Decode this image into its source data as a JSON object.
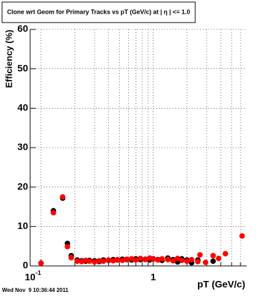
{
  "chart_data": {
    "type": "scatter",
    "title": "Clone wrt Geom for Primary Tracks vs pT (GeV/c) at | η | <= 1.0",
    "x_label": "pT (GeV/c)",
    "y_label": "Efficiency (%)",
    "timestamp": "Wed Nov  9 10:36:44 2011",
    "log_x": true,
    "grid": true,
    "xlim": [
      0.08,
      6.8
    ],
    "ylim": [
      0,
      60
    ],
    "xticks": [
      {
        "value": 0.1,
        "label": "10",
        "exponent": "-1"
      },
      {
        "value": 1,
        "label": "1"
      }
    ],
    "x_minor_ticks": [
      0.2,
      0.3,
      0.4,
      0.5,
      0.6,
      0.7,
      0.8,
      0.9,
      2,
      3,
      4,
      5,
      6
    ],
    "yticks": [
      0,
      10,
      20,
      30,
      40,
      50,
      60
    ],
    "series": [
      {
        "name": "Black",
        "color": "#000000",
        "x": [
          0.1,
          0.129,
          0.156,
          0.172,
          0.186,
          0.21,
          0.23,
          0.25,
          0.27,
          0.3,
          0.33,
          0.36,
          0.4,
          0.44,
          0.48,
          0.53,
          0.58,
          0.64,
          0.7,
          0.77,
          0.85,
          0.93,
          1.0,
          1.1,
          1.2,
          1.35,
          1.5,
          1.65,
          1.8,
          2.0,
          2.2,
          2.5,
          3.42
        ],
        "values": [
          0.7,
          14.0,
          17.2,
          5.7,
          2.6,
          1.5,
          1.3,
          1.2,
          1.4,
          1.3,
          1.1,
          1.5,
          1.4,
          1.6,
          1.5,
          1.7,
          1.6,
          1.5,
          1.8,
          1.6,
          1.7,
          1.5,
          1.8,
          1.6,
          1.4,
          2.0,
          1.6,
          1.0,
          1.8,
          1.5,
          0.8,
          1.5,
          1.2
        ]
      },
      {
        "name": "Red",
        "color": "#ff0000",
        "x": [
          0.1,
          0.129,
          0.156,
          0.172,
          0.186,
          0.21,
          0.23,
          0.25,
          0.27,
          0.3,
          0.33,
          0.36,
          0.4,
          0.44,
          0.48,
          0.53,
          0.58,
          0.64,
          0.7,
          0.77,
          0.85,
          0.93,
          1.0,
          1.1,
          1.2,
          1.35,
          1.5,
          1.65,
          1.8,
          2.0,
          2.2,
          2.5,
          2.61,
          2.93,
          3.42,
          3.83,
          4.4,
          6.2
        ],
        "values": [
          0.7,
          13.5,
          17.5,
          4.9,
          2.1,
          1.2,
          1.1,
          1.4,
          1.2,
          1.0,
          1.3,
          1.2,
          1.5,
          1.3,
          1.6,
          1.4,
          1.7,
          1.8,
          1.5,
          1.9,
          1.6,
          2.0,
          1.7,
          1.5,
          1.8,
          1.6,
          1.3,
          1.9,
          1.4,
          1.2,
          1.6,
          1.1,
          2.8,
          0.9,
          2.6,
          1.9,
          3.1,
          7.6
        ]
      }
    ]
  }
}
